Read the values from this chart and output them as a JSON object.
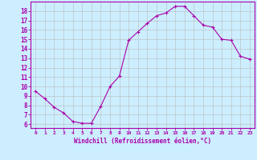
{
  "hours": [
    0,
    1,
    2,
    3,
    4,
    5,
    6,
    7,
    8,
    9,
    10,
    11,
    12,
    13,
    14,
    15,
    16,
    17,
    18,
    19,
    20,
    21,
    22,
    23
  ],
  "windchill": [
    9.5,
    8.7,
    7.8,
    7.2,
    6.3,
    6.1,
    6.1,
    7.9,
    10.0,
    11.1,
    14.9,
    15.8,
    16.7,
    17.5,
    17.8,
    18.5,
    18.5,
    17.5,
    16.5,
    16.3,
    15.0,
    14.9,
    13.2,
    12.9
  ],
  "line_color": "#aa00aa",
  "marker": "+",
  "bg_color": "#cceeff",
  "grid_color": "#bbbbbb",
  "xlabel": "Windchill (Refroidissement éolien,°C)",
  "ylabel_ticks": [
    6,
    7,
    8,
    9,
    10,
    11,
    12,
    13,
    14,
    15,
    16,
    17,
    18
  ],
  "ylim": [
    5.6,
    19.0
  ],
  "xlim": [
    -0.5,
    23.5
  ],
  "figwidth": 3.2,
  "figheight": 2.0,
  "dpi": 100
}
